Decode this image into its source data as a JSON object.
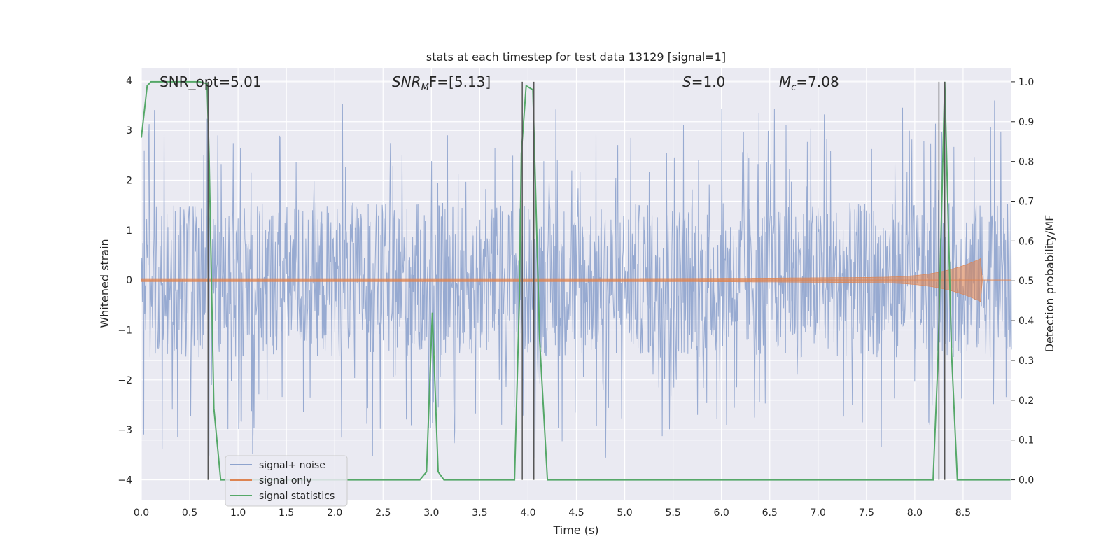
{
  "chart_data": {
    "type": "line",
    "title": "stats at each timestep for test data 13129 [signal=1]",
    "xlabel": "Time (s)",
    "ylabel_left": "Whitened strain",
    "ylabel_right": "Detection probability/MF",
    "xlim": [
      0.0,
      9.0
    ],
    "ylim_left": [
      -4.4,
      4.25
    ],
    "ylim_right": [
      -0.05,
      1.035
    ],
    "x_ticks": [
      "0.0",
      "0.5",
      "1.0",
      "1.5",
      "2.0",
      "2.5",
      "3.0",
      "3.5",
      "4.0",
      "4.5",
      "5.0",
      "5.5",
      "6.0",
      "6.5",
      "7.0",
      "7.5",
      "8.0",
      "8.5"
    ],
    "y_left_ticks": [
      "−4",
      "−3",
      "−2",
      "−1",
      "0",
      "1",
      "2",
      "3",
      "4"
    ],
    "y_right_ticks": [
      "0.0",
      "0.1",
      "0.2",
      "0.3",
      "0.4",
      "0.5",
      "0.6",
      "0.7",
      "0.8",
      "0.9",
      "1.0"
    ],
    "grid": true,
    "legend_position": "lower-left",
    "annotations": {
      "snr_opt": "SNR_opt=5.01",
      "snr_mf_main": "SNR",
      "snr_mf_sub": "M",
      "snr_mf_tail": "F=[5.13]",
      "s_main": "S",
      "s_tail": "=1.0",
      "mc_main": "M",
      "mc_sub": "c",
      "mc_tail": "=7.08"
    },
    "series": [
      {
        "name": "signal+ noise",
        "color": "#8ea3cd",
        "kind": "whitened noise, approx. ±1.5 band with peaks to about ±3.5",
        "values_approx": "band [-1.6, 1.6], extremes [-3.7, 3.5]"
      },
      {
        "name": "signal only",
        "color": "#dd8452",
        "kind": "chirp",
        "x_end": 8.68,
        "peak_amplitude": 0.55
      },
      {
        "name": "signal statistics",
        "color": "#55a868",
        "axis": "right",
        "x": [
          0.0,
          0.06,
          0.1,
          0.2,
          0.4,
          0.6,
          0.68,
          0.7,
          0.75,
          0.82,
          0.9,
          1.5,
          2.0,
          2.5,
          2.88,
          2.95,
          3.01,
          3.07,
          3.13,
          3.3,
          3.6,
          3.86,
          3.91,
          3.93,
          3.98,
          4.05,
          4.12,
          4.2,
          4.5,
          5.0,
          6.0,
          7.0,
          8.0,
          8.19,
          8.24,
          8.31,
          8.38,
          8.44,
          8.6,
          8.99
        ],
        "values": [
          0.86,
          0.99,
          1.0,
          1.0,
          1.0,
          1.0,
          0.995,
          0.82,
          0.18,
          0.0,
          0.0,
          0.0,
          0.0,
          0.0,
          0.0,
          0.02,
          0.42,
          0.02,
          0.0,
          0.0,
          0.0,
          0.0,
          0.45,
          0.82,
          0.99,
          0.98,
          0.35,
          0.0,
          0.0,
          0.0,
          0.0,
          0.0,
          0.0,
          0.0,
          0.3,
          1.0,
          0.32,
          0.0,
          0.0,
          0.0
        ]
      }
    ],
    "vlines": [
      0.69,
      3.94,
      4.06,
      8.25,
      8.31
    ]
  }
}
